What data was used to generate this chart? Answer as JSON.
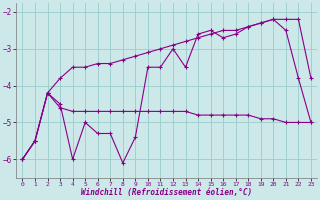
{
  "xlabel": "Windchill (Refroidissement éolien,°C)",
  "background_color": "#cce8e8",
  "line_color": "#880088",
  "grid_color": "#99cccc",
  "x_values": [
    0,
    1,
    2,
    3,
    4,
    5,
    6,
    7,
    8,
    9,
    10,
    11,
    12,
    13,
    14,
    15,
    16,
    17,
    18,
    19,
    20,
    21,
    22,
    23
  ],
  "line1": [
    -6.0,
    -5.5,
    -4.2,
    -4.5,
    -6.0,
    -5.0,
    -5.3,
    -5.3,
    -6.1,
    -5.4,
    -3.5,
    -3.5,
    -3.0,
    -3.5,
    -2.6,
    -2.5,
    -2.7,
    -2.6,
    -2.4,
    -2.3,
    -2.2,
    -2.5,
    -3.8,
    -5.0
  ],
  "line2": [
    -6.0,
    -5.5,
    -4.2,
    -4.6,
    -4.7,
    -4.7,
    -4.7,
    -4.7,
    -4.7,
    -4.7,
    -4.7,
    -4.7,
    -4.7,
    -4.7,
    -4.8,
    -4.8,
    -4.8,
    -4.8,
    -4.8,
    -4.9,
    -4.9,
    -5.0,
    -5.0,
    -5.0
  ],
  "line3": [
    -6.0,
    -5.5,
    -4.2,
    -3.8,
    -3.5,
    -3.5,
    -3.4,
    -3.4,
    -3.3,
    -3.2,
    -3.1,
    -3.0,
    -2.9,
    -2.8,
    -2.7,
    -2.6,
    -2.5,
    -2.5,
    -2.4,
    -2.3,
    -2.2,
    -2.2,
    -2.2,
    -3.8
  ],
  "ylim": [
    -6.5,
    -1.75
  ],
  "xlim": [
    -0.5,
    23.5
  ],
  "yticks": [
    -6,
    -5,
    -4,
    -3,
    -2
  ],
  "xticks": [
    0,
    1,
    2,
    3,
    4,
    5,
    6,
    7,
    8,
    9,
    10,
    11,
    12,
    13,
    14,
    15,
    16,
    17,
    18,
    19,
    20,
    21,
    22,
    23
  ]
}
